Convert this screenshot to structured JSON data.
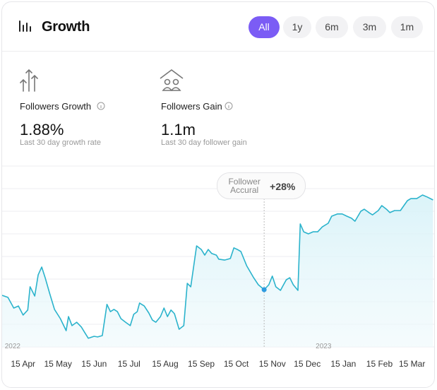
{
  "header": {
    "title": "Growth",
    "tabs": [
      "All",
      "1y",
      "6m",
      "3m",
      "1m"
    ],
    "active_tab": 0
  },
  "stats": [
    {
      "label": "Followers Growth",
      "value": "1.88%",
      "caption": "Last 30 day growth rate"
    },
    {
      "label": "Followers Gain",
      "value": "1.1m",
      "caption": "Last 30 day follower gain"
    }
  ],
  "chart_data": {
    "type": "area",
    "x": [
      -18,
      -13,
      -8,
      -4,
      0,
      4,
      6,
      10,
      13,
      16,
      19,
      23,
      27,
      32,
      37,
      39,
      42,
      46,
      50,
      53,
      56,
      61,
      64,
      68,
      72,
      75,
      78,
      81,
      84,
      88,
      92,
      95,
      98,
      100,
      104,
      108,
      111,
      114,
      118,
      121,
      124,
      127,
      130,
      134,
      138,
      141,
      144,
      147,
      149,
      153,
      156,
      159,
      162,
      166,
      168,
      173,
      178,
      181,
      184,
      187,
      192,
      198,
      202,
      207,
      211,
      214,
      217,
      221,
      223,
      226,
      229,
      232,
      236,
      238,
      241,
      245,
      249,
      253,
      257,
      262,
      265,
      270,
      274,
      278,
      282,
      285,
      290,
      293,
      297,
      300,
      305,
      308,
      312,
      315,
      319,
      324,
      327,
      330,
      333,
      338,
      343,
      347,
      352
    ],
    "values": [
      2.28,
      2.19,
      1.72,
      1.81,
      1.41,
      1.63,
      2.66,
      2.25,
      3.19,
      3.53,
      3.06,
      2.34,
      1.66,
      1.25,
      0.72,
      1.34,
      0.94,
      1.09,
      0.88,
      0.63,
      0.38,
      0.47,
      0.44,
      0.5,
      1.88,
      1.56,
      1.66,
      1.56,
      1.25,
      1.09,
      0.94,
      1.44,
      1.56,
      1.94,
      1.81,
      1.5,
      1.19,
      1.09,
      1.34,
      1.72,
      1.34,
      1.63,
      1.47,
      0.78,
      0.94,
      2.81,
      2.66,
      3.75,
      4.47,
      4.31,
      4.06,
      4.31,
      4.13,
      4.06,
      3.88,
      3.84,
      3.91,
      4.38,
      4.31,
      4.22,
      3.59,
      3.06,
      2.75,
      2.53,
      2.75,
      3.13,
      2.66,
      2.5,
      2.69,
      2.97,
      3.06,
      2.75,
      2.5,
      5.44,
      5.09,
      5.0,
      5.09,
      5.09,
      5.31,
      5.47,
      5.78,
      5.88,
      5.88,
      5.78,
      5.69,
      5.56,
      6.0,
      6.09,
      5.94,
      5.84,
      6.03,
      6.25,
      6.09,
      5.94,
      6.03,
      6.03,
      6.25,
      6.47,
      6.56,
      6.56,
      6.72,
      6.63,
      6.5
    ],
    "color": "#2bb3cc",
    "xlim": [
      -18,
      353
    ],
    "xticks": [
      {
        "value": 0,
        "label": "15 Apr"
      },
      {
        "value": 30,
        "label": "15 May"
      },
      {
        "value": 61,
        "label": "15 Jun"
      },
      {
        "value": 91,
        "label": "15 Jul"
      },
      {
        "value": 122,
        "label": "15 Aug"
      },
      {
        "value": 153,
        "label": "15 Sep"
      },
      {
        "value": 183,
        "label": "15 Oct"
      },
      {
        "value": 214,
        "label": "15 Nov"
      },
      {
        "value": 244,
        "label": "15 Dec"
      },
      {
        "value": 275,
        "label": "15 Jan"
      },
      {
        "value": 306,
        "label": "15 Feb"
      },
      {
        "value": 334,
        "label": "15 Mar"
      }
    ],
    "year_labels": [
      {
        "value": -9,
        "label": "2022"
      },
      {
        "value": 258,
        "label": "2023"
      }
    ],
    "ylim": [
      0,
      8
    ],
    "yticks": [
      0,
      1,
      2,
      3,
      4,
      5,
      6,
      7,
      8
    ],
    "grid": true,
    "tooltip": {
      "x": 207,
      "title": "Follower Accural",
      "value_label": "+28%"
    }
  }
}
